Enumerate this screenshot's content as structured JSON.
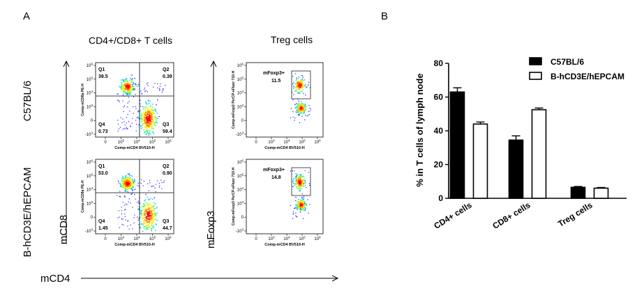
{
  "panel_a": {
    "label": "A",
    "title_left": "CD4+/CD8+ T cells",
    "title_right": "Treg cells",
    "row_labels": [
      "C57BL/6",
      "B-hCD3E/hEPCAM"
    ],
    "y_axis_left": "mCD8",
    "y_axis_right": "mFoxp3",
    "x_axis": "mCD4",
    "quadrant_plots": [
      {
        "x_label": "Comp-mCD4 BV510-H",
        "y_label": "Comp-mCD8a PE-H",
        "quadrants": [
          {
            "name": "Q1",
            "value": "39.5"
          },
          {
            "name": "Q2",
            "value": "0.39"
          },
          {
            "name": "Q3",
            "value": "59.4"
          },
          {
            "name": "Q4",
            "value": "0.73"
          }
        ]
      },
      {
        "x_label": "Comp-mCD4 BV510-H",
        "y_label": "Comp-mCD8a PE-H",
        "quadrants": [
          {
            "name": "Q1",
            "value": "53.0"
          },
          {
            "name": "Q2",
            "value": "0.90"
          },
          {
            "name": "Q3",
            "value": "44.7"
          },
          {
            "name": "Q4",
            "value": "1.45"
          }
        ]
      }
    ],
    "gate_plots": [
      {
        "x_label": "Comp-mCD4 BV510-H",
        "y_label": "Comp-mFoxp3 PerCP-eFluor 710-H",
        "gate_name": "mFoxp3+",
        "gate_value": "11.5"
      },
      {
        "x_label": "Comp-mCD4 BV510-H",
        "y_label": "Comp-mFoxp3 PerCP-eFluor 710-H",
        "gate_name": "mFoxp3+",
        "gate_value": "14.8"
      }
    ],
    "tick_labels_x": [
      "0",
      "10^3",
      "10^4",
      "10^5",
      "10^6"
    ],
    "tick_labels_y": [
      "10^6",
      "10^5",
      "10^4",
      "10^3",
      "0",
      "-10^3"
    ],
    "dot_colors": [
      "#1a1aff",
      "#00b0ff",
      "#33ff66",
      "#ffee00",
      "#ff8800",
      "#ff0000"
    ]
  },
  "panel_b": {
    "label": "B",
    "chart_data": {
      "type": "bar",
      "title": "",
      "xlabel": "",
      "ylabel": "% in T cells of lymph node",
      "ylim": [
        0,
        80
      ],
      "yticks": [
        0,
        20,
        40,
        60,
        80
      ],
      "categories": [
        "CD4+ cells",
        "CD8+ cells",
        "Treg cells"
      ],
      "legend_position": "top-right",
      "series": [
        {
          "name": "C57BL/6",
          "fill": "#000000",
          "values": [
            63,
            34.5,
            6.5
          ],
          "errors": [
            2.5,
            2.5,
            0.5
          ]
        },
        {
          "name": "B-hCD3E/hEPCAM",
          "fill": "#ffffff",
          "values": [
            44,
            52.5,
            6.0
          ],
          "errors": [
            1.2,
            1.0,
            0.4
          ]
        }
      ]
    }
  }
}
